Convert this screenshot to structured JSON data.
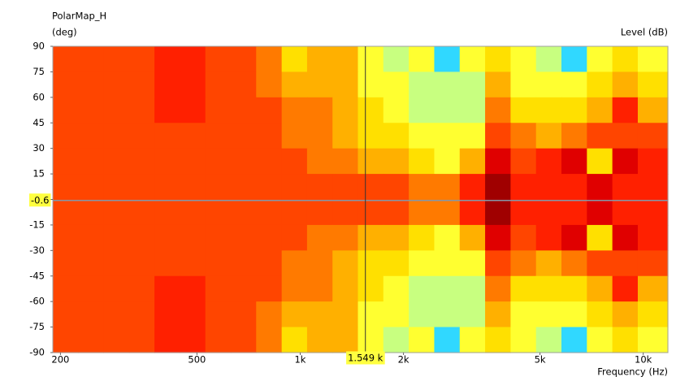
{
  "chart_data": {
    "type": "contour",
    "title": "PolarMap_H",
    "y_label": "(deg)",
    "level_label": "Level  (dB)",
    "x_label": "Frequency  (Hz)",
    "log_x": true,
    "xlim": [
      190,
      11800
    ],
    "xticks": [
      200,
      500,
      {
        "value": 1000,
        "label": "1k"
      },
      {
        "value": 2000,
        "label": "2k"
      },
      {
        "value": 5000,
        "label": "5k"
      },
      {
        "value": 10000,
        "label": "10k"
      }
    ],
    "ylim": [
      -90,
      90
    ],
    "yticks": [
      90,
      75,
      60,
      45,
      30,
      15,
      0,
      -15,
      -30,
      -45,
      -60,
      -75,
      -90
    ],
    "xbins": [
      190,
      225,
      267,
      317,
      376,
      446,
      529,
      627,
      744,
      883,
      1047,
      1242,
      1473,
      1747,
      2073,
      2459,
      2917,
      3460,
      4105,
      4869,
      5776,
      6852,
      8128,
      9642,
      11800
    ],
    "colors": [
      "#30d8ff",
      "#c8ff80",
      "#ffff30",
      "#ffe000",
      "#ffb000",
      "#ff7a00",
      "#ff4500",
      "#ff2000",
      "#e00000",
      "#a00000"
    ],
    "z": [
      [
        6,
        6,
        6,
        6,
        7,
        7,
        6,
        6,
        5,
        3,
        4,
        4,
        2,
        1,
        2,
        0,
        2,
        3,
        2,
        1,
        0,
        2,
        3,
        2
      ],
      [
        6,
        6,
        6,
        6,
        7,
        7,
        6,
        6,
        5,
        4,
        4,
        4,
        2,
        2,
        1,
        1,
        1,
        4,
        2,
        2,
        2,
        3,
        4,
        3
      ],
      [
        6,
        6,
        6,
        6,
        7,
        7,
        6,
        6,
        6,
        5,
        5,
        4,
        3,
        2,
        1,
        1,
        1,
        5,
        3,
        3,
        3,
        4,
        7,
        4
      ],
      [
        6,
        6,
        6,
        6,
        6,
        6,
        6,
        6,
        6,
        5,
        5,
        4,
        3,
        3,
        2,
        2,
        2,
        6,
        5,
        4,
        5,
        6,
        6,
        6
      ],
      [
        6,
        6,
        6,
        6,
        6,
        6,
        6,
        6,
        6,
        6,
        5,
        5,
        4,
        4,
        3,
        2,
        4,
        8,
        6,
        7,
        8,
        3,
        8,
        7
      ],
      [
        6,
        6,
        6,
        6,
        6,
        6,
        6,
        6,
        6,
        6,
        6,
        6,
        6,
        6,
        5,
        5,
        7,
        9,
        7,
        7,
        7,
        8,
        7,
        7
      ],
      [
        6,
        6,
        6,
        6,
        6,
        6,
        6,
        6,
        6,
        6,
        6,
        6,
        6,
        6,
        5,
        5,
        7,
        9,
        7,
        7,
        7,
        8,
        7,
        7
      ],
      [
        6,
        6,
        6,
        6,
        6,
        6,
        6,
        6,
        6,
        6,
        5,
        5,
        4,
        4,
        3,
        2,
        4,
        8,
        6,
        7,
        8,
        3,
        8,
        7
      ],
      [
        6,
        6,
        6,
        6,
        6,
        6,
        6,
        6,
        6,
        5,
        5,
        4,
        3,
        3,
        2,
        2,
        2,
        6,
        5,
        4,
        5,
        6,
        6,
        6
      ],
      [
        6,
        6,
        6,
        6,
        7,
        7,
        6,
        6,
        6,
        5,
        5,
        4,
        3,
        2,
        1,
        1,
        1,
        5,
        3,
        3,
        3,
        4,
        7,
        4
      ],
      [
        6,
        6,
        6,
        6,
        7,
        7,
        6,
        6,
        5,
        4,
        4,
        4,
        2,
        2,
        1,
        1,
        1,
        4,
        2,
        2,
        2,
        3,
        4,
        3
      ],
      [
        6,
        6,
        6,
        6,
        7,
        7,
        6,
        6,
        5,
        3,
        4,
        4,
        2,
        1,
        2,
        0,
        2,
        3,
        2,
        1,
        0,
        2,
        3,
        2
      ]
    ],
    "cursor": {
      "x": {
        "value": 1549,
        "label": "1.549 k"
      },
      "y": {
        "value": -0.6,
        "label": "-0.6"
      }
    }
  }
}
